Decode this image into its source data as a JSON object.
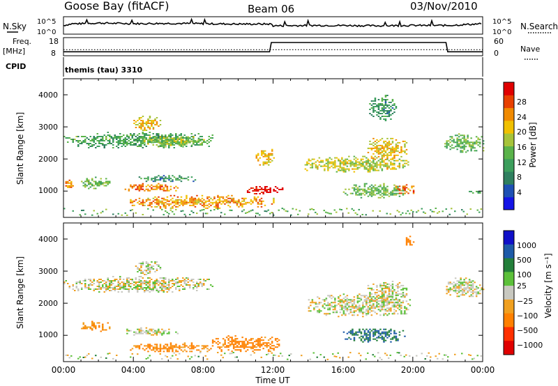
{
  "header": {
    "station": "Goose Bay (fitACF)",
    "beam": "Beam 06",
    "date": "03/Nov/2010"
  },
  "params": {
    "nsky_label": "N.Sky",
    "nsky_ticks": [
      "10^5",
      "10^0"
    ],
    "nsearch_label": "N.Search",
    "freq_label": "Freq.",
    "freq_unit": "[MHz]",
    "freq_ticks": [
      "18",
      "8"
    ],
    "nave_ticks": [
      "60",
      "0"
    ],
    "nave_label": "Nave",
    "cpid_label": "CPID",
    "cpid_value": "themis (tau) 3310"
  },
  "power_panel": {
    "ylabel": "Slant Range [km]",
    "yticks": [
      "4000",
      "3000",
      "2000",
      "1000"
    ],
    "colorbar_label": "Power [dB]",
    "colorbar_ticks": [
      "28",
      "24",
      "20",
      "16",
      "12",
      "8",
      "4"
    ]
  },
  "velocity_panel": {
    "ylabel": "Slant Range [km]",
    "yticks": [
      "4000",
      "3000",
      "2000",
      "1000"
    ],
    "colorbar_label": "Velocity [m s⁻¹]",
    "colorbar_ticks": [
      "1000",
      "500",
      "100",
      "25",
      "−25",
      "−100",
      "−500",
      "−1000"
    ]
  },
  "xaxis": {
    "ticks": [
      "00:00",
      "04:00",
      "08:00",
      "12:00",
      "16:00",
      "20:00",
      "00:00"
    ],
    "label": "Time UT"
  },
  "colors": {
    "power_scale": [
      "#1414e6",
      "#1e50b4",
      "#2f7f5f",
      "#3c9e5c",
      "#5ab34a",
      "#a6c33a",
      "#f0c000",
      "#f08a00",
      "#e84000",
      "#e00000"
    ],
    "velocity_scale": [
      "#1010c8",
      "#1d5aa8",
      "#237f3a",
      "#5cc03a",
      "#c8c8c0",
      "#f0a020",
      "#ff8000",
      "#ff3000",
      "#e00000"
    ]
  },
  "chart_data": [
    {
      "type": "line",
      "title": "N.Sky / N.Search",
      "x_unit": "hours UT",
      "x": [
        0,
        0.5,
        1,
        2,
        4,
        6,
        8,
        10,
        11.9,
        12,
        14,
        16,
        18,
        20,
        22,
        24
      ],
      "series": [
        {
          "name": "N.Sky",
          "values": [
            2.5,
            3.0,
            3.0,
            3.2,
            3.0,
            3.1,
            3.0,
            2.9,
            2.9,
            2.4,
            2.5,
            2.5,
            2.4,
            2.5,
            2.5,
            3.0
          ]
        }
      ],
      "ylim": [
        0,
        5
      ]
    },
    {
      "type": "line",
      "title": "Freq / Nave",
      "x": [
        0,
        11.8,
        11.9,
        21.9,
        22,
        24
      ],
      "series": [
        {
          "name": "Freq",
          "values": [
            10.2,
            10.2,
            15.3,
            15.3,
            10.2,
            10.2
          ]
        },
        {
          "name": "Nave",
          "values": [
            20,
            20,
            20,
            20,
            20,
            20
          ]
        }
      ],
      "ylim": [
        8,
        18
      ]
    },
    {
      "type": "heatmap",
      "title": "Power [dB]",
      "ylabel": "Slant Range [km]",
      "xlabel": "Time UT",
      "x_range": [
        0,
        24
      ],
      "ylim": [
        180,
        4500
      ],
      "features": [
        {
          "t": [
            0,
            8.5
          ],
          "range": [
            2350,
            2850
          ],
          "power": 10
        },
        {
          "t": [
            4.0,
            5.5
          ],
          "range": [
            2900,
            3350
          ],
          "power": 18
        },
        {
          "t": [
            4.5,
            8.0
          ],
          "range": [
            2400,
            2750
          ],
          "power": 14
        },
        {
          "t": [
            0,
            0.6
          ],
          "range": [
            1100,
            1400
          ],
          "power": 22
        },
        {
          "t": [
            1.0,
            2.6
          ],
          "range": [
            1100,
            1450
          ],
          "power": 12
        },
        {
          "t": [
            3.5,
            6.5
          ],
          "range": [
            1000,
            1250
          ],
          "power": 22
        },
        {
          "t": [
            4.2,
            7.5
          ],
          "range": [
            1300,
            1500
          ],
          "power": 8
        },
        {
          "t": [
            3.8,
            12.0
          ],
          "range": [
            480,
            880
          ],
          "power": 20
        },
        {
          "t": [
            10.5,
            12.5
          ],
          "range": [
            900,
            1200
          ],
          "power": 28
        },
        {
          "t": [
            11.0,
            12.0
          ],
          "range": [
            1800,
            2400
          ],
          "power": 18
        },
        {
          "t": [
            13.8,
            19.8
          ],
          "range": [
            1600,
            2100
          ],
          "power": 16
        },
        {
          "t": [
            17.4,
            19.6
          ],
          "range": [
            2000,
            2700
          ],
          "power": 18
        },
        {
          "t": [
            16.0,
            19.5
          ],
          "range": [
            800,
            1250
          ],
          "power": 12
        },
        {
          "t": [
            19.0,
            20.0
          ],
          "range": [
            900,
            1300
          ],
          "power": 22
        },
        {
          "t": [
            17.5,
            19.0
          ],
          "range": [
            3200,
            4000
          ],
          "power": 8
        },
        {
          "t": [
            21.8,
            24.0
          ],
          "range": [
            2200,
            2800
          ],
          "power": 12
        },
        {
          "t": [
            23.2,
            24.0
          ],
          "range": [
            950,
            1050
          ],
          "power": 10
        }
      ]
    },
    {
      "type": "heatmap",
      "title": "Velocity [m s⁻¹]",
      "ylabel": "Slant Range [km]",
      "xlabel": "Time UT",
      "x_range": [
        0,
        24
      ],
      "ylim": [
        180,
        4500
      ],
      "features": [
        {
          "t": [
            0,
            8.5
          ],
          "range": [
            2350,
            2850
          ],
          "velocity": 0
        },
        {
          "t": [
            4.0,
            5.5
          ],
          "range": [
            2900,
            3350
          ],
          "velocity": 0
        },
        {
          "t": [
            1.0,
            2.6
          ],
          "range": [
            1100,
            1450
          ],
          "velocity": -100
        },
        {
          "t": [
            3.5,
            6.5
          ],
          "range": [
            1000,
            1250
          ],
          "velocity": 0
        },
        {
          "t": [
            3.8,
            8.5
          ],
          "range": [
            480,
            780
          ],
          "velocity": -120
        },
        {
          "t": [
            8.5,
            12.3
          ],
          "range": [
            480,
            1000
          ],
          "velocity": -150
        },
        {
          "t": [
            14.0,
            19.8
          ],
          "range": [
            1600,
            2300
          ],
          "velocity": 0
        },
        {
          "t": [
            17.4,
            19.6
          ],
          "range": [
            2000,
            2700
          ],
          "velocity": 0
        },
        {
          "t": [
            16.0,
            19.5
          ],
          "range": [
            800,
            1250
          ],
          "velocity": 300
        },
        {
          "t": [
            19.5,
            20.0
          ],
          "range": [
            3800,
            4100
          ],
          "velocity": -200
        },
        {
          "t": [
            21.8,
            24.0
          ],
          "range": [
            2200,
            2800
          ],
          "velocity": 0
        }
      ]
    }
  ]
}
